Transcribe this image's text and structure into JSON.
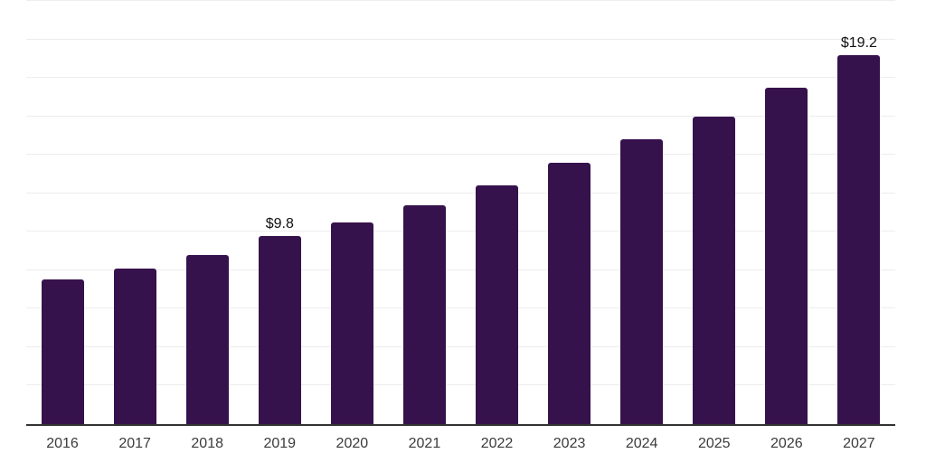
{
  "chart_data": {
    "type": "bar",
    "title": "",
    "xlabel": "",
    "ylabel": "",
    "categories": [
      "2016",
      "2017",
      "2018",
      "2019",
      "2020",
      "2021",
      "2022",
      "2023",
      "2024",
      "2025",
      "2026",
      "2027"
    ],
    "values": [
      7.5,
      8.1,
      8.8,
      9.8,
      10.5,
      11.4,
      12.4,
      13.6,
      14.8,
      16.0,
      17.5,
      19.2
    ],
    "bar_labels": [
      "",
      "",
      "",
      "$9.8",
      "",
      "",
      "",
      "",
      "",
      "",
      "",
      "$19.2"
    ],
    "ylim": [
      0,
      22
    ],
    "gridline_step": 2,
    "grid": "horizontal-only",
    "legend": "none",
    "y_tick_labels_visible": false,
    "colors": {
      "bar": "#36124d",
      "grid": "#ededed",
      "axis_line": "#333333",
      "tick_label": "#3b3b3b",
      "data_label": "#111111",
      "background": "#ffffff"
    }
  }
}
